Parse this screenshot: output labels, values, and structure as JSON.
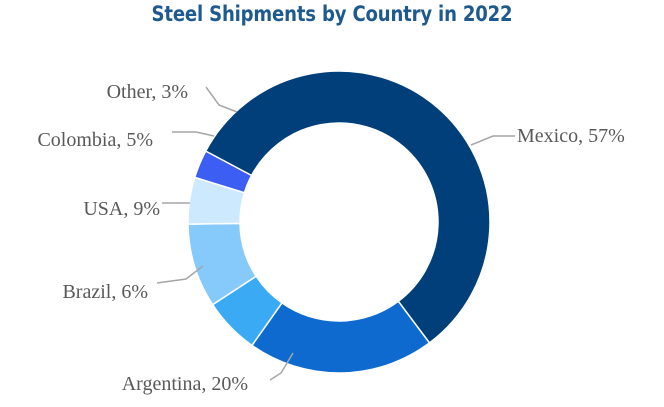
{
  "chart_data": {
    "type": "pie",
    "donut": true,
    "title": "Steel Shipments by Country in 2022",
    "slices": [
      {
        "label": "Mexico, 57%",
        "name": "Mexico",
        "value": 57,
        "color": "#003f7a"
      },
      {
        "label": "Argentina, 20%",
        "name": "Argentina",
        "value": 20,
        "color": "#0f6ad0"
      },
      {
        "label": "Brazil, 6%",
        "name": "Brazil",
        "value": 6,
        "color": "#3aaaf5"
      },
      {
        "label": "USA, 9%",
        "name": "USA",
        "value": 9,
        "color": "#86c9fb"
      },
      {
        "label": "Colombia, 5%",
        "name": "Colombia",
        "value": 5,
        "color": "#cde9fd"
      },
      {
        "label": "Other, 3%",
        "name": "Other",
        "value": 3,
        "color": "#3d5ef2"
      }
    ]
  }
}
